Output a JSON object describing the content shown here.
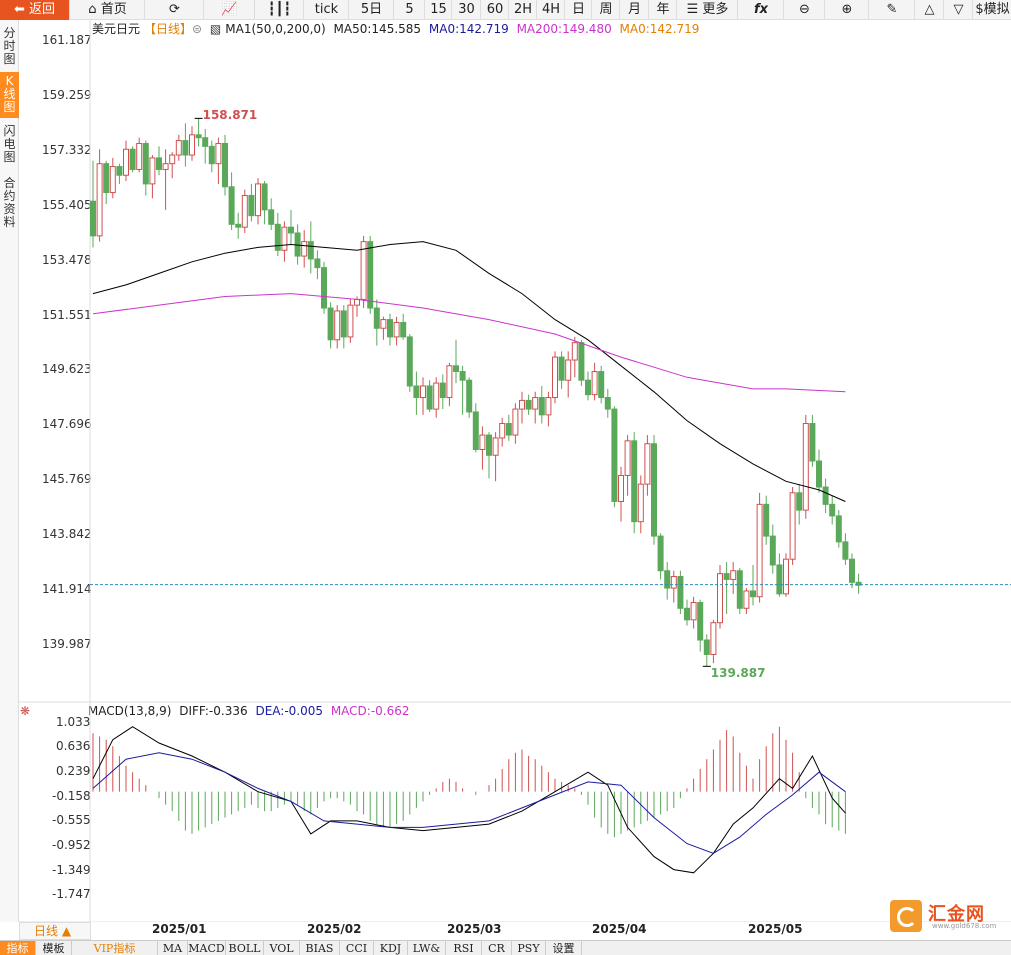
{
  "toolbar": {
    "back": "返回",
    "home": "首页",
    "tick": "tick",
    "day5": "5日",
    "m5": "5",
    "m15": "15",
    "m30": "30",
    "m60": "60",
    "h2": "2H",
    "h4": "4H",
    "day": "日",
    "week": "周",
    "month": "月",
    "year": "年",
    "more": "更多",
    "sim": "模拟"
  },
  "left_tabs": [
    "分时图",
    "K线图",
    "闪电图",
    "合约资料"
  ],
  "legend": {
    "symbol": "美元日元",
    "period": "【日线】",
    "ma1": "MA1(50,0,200,0)",
    "ma50": "MA50:145.585",
    "ma0a": "MA0:142.719",
    "ma200": "MA200:149.480",
    "ma0b": "MA0:142.719"
  },
  "macd_legend": {
    "name": "MACD(13,8,9)",
    "diff": "DIFF:-0.336",
    "dea": "DEA:-0.005",
    "macd": "MACD:-0.662"
  },
  "price_axis": [
    "161.187",
    "159.259",
    "157.332",
    "155.405",
    "153.478",
    "151.551",
    "149.623",
    "147.696",
    "145.769",
    "143.842",
    "141.914",
    "139.987"
  ],
  "macd_axis": [
    "1.033",
    "0.636",
    "0.239",
    "-0.158",
    "-0.555",
    "-0.952",
    "-1.349",
    "-1.747"
  ],
  "x_labels": [
    "2025/01",
    "2025/02",
    "2025/03",
    "2025/04",
    "2025/05"
  ],
  "high_label": "158.871",
  "low_label": "139.887",
  "period_tag": "日线 ▲",
  "bottom_tabs": [
    "指标",
    "模板",
    "VIP指标",
    "MA",
    "MACD",
    "BOLL",
    "VOL",
    "BIAS",
    "CCI",
    "KDJ",
    "LW&",
    "RSI",
    "CR",
    "PSY",
    "设置"
  ],
  "logo": {
    "name": "汇金网",
    "url": "www.gold678.com"
  },
  "colors": {
    "up": "#d05050",
    "down": "#5aa85a",
    "ma50": "#000000",
    "ma200": "#cc33cc",
    "accent": "#ff8a1e",
    "current_line": "#2b8fb0"
  },
  "chart_data": {
    "type": "candlestick",
    "ylim": [
      139.0,
      162.0
    ],
    "current_price": 142.72,
    "candles": [
      [
        156.0,
        157.4,
        154.4,
        154.8
      ],
      [
        154.8,
        157.8,
        154.6,
        157.3
      ],
      [
        157.3,
        157.4,
        155.9,
        156.3
      ],
      [
        156.3,
        157.5,
        156.1,
        157.2
      ],
      [
        157.2,
        157.3,
        156.6,
        156.9
      ],
      [
        156.9,
        158.1,
        156.7,
        157.8
      ],
      [
        157.8,
        157.9,
        157.0,
        157.1
      ],
      [
        157.1,
        158.2,
        157.0,
        158.0
      ],
      [
        158.0,
        158.1,
        156.2,
        156.6
      ],
      [
        156.6,
        157.6,
        156.1,
        157.5
      ],
      [
        157.5,
        157.9,
        156.9,
        157.1
      ],
      [
        157.1,
        157.8,
        155.7,
        157.3
      ],
      [
        157.3,
        157.7,
        156.8,
        157.6
      ],
      [
        157.6,
        158.3,
        157.4,
        158.1
      ],
      [
        158.1,
        158.7,
        157.2,
        157.6
      ],
      [
        157.6,
        158.6,
        157.4,
        158.3
      ],
      [
        158.3,
        158.87,
        157.9,
        158.2
      ],
      [
        158.2,
        158.5,
        157.3,
        157.9
      ],
      [
        157.9,
        158.1,
        157.0,
        157.3
      ],
      [
        157.3,
        158.2,
        156.6,
        158.0
      ],
      [
        158.0,
        158.3,
        156.2,
        156.5
      ],
      [
        156.5,
        157.0,
        155.0,
        155.2
      ],
      [
        155.2,
        155.6,
        154.7,
        155.1
      ],
      [
        155.1,
        156.4,
        154.9,
        156.2
      ],
      [
        156.2,
        156.6,
        155.3,
        155.5
      ],
      [
        155.5,
        156.8,
        155.2,
        156.6
      ],
      [
        156.6,
        156.7,
        155.2,
        155.7
      ],
      [
        155.7,
        156.1,
        155.0,
        155.2
      ],
      [
        155.2,
        155.6,
        154.1,
        154.3
      ],
      [
        154.3,
        155.3,
        153.9,
        155.1
      ],
      [
        155.1,
        155.7,
        154.5,
        154.9
      ],
      [
        154.9,
        155.2,
        153.8,
        154.1
      ],
      [
        154.1,
        155.0,
        153.7,
        154.6
      ],
      [
        154.6,
        155.3,
        153.5,
        154.0
      ],
      [
        154.0,
        154.3,
        153.3,
        153.7
      ],
      [
        153.7,
        153.9,
        152.1,
        152.3
      ],
      [
        152.3,
        152.5,
        150.9,
        151.2
      ],
      [
        151.2,
        152.4,
        150.9,
        152.2
      ],
      [
        152.2,
        152.4,
        150.9,
        151.3
      ],
      [
        151.3,
        152.6,
        151.1,
        152.4
      ],
      [
        152.4,
        152.7,
        152.0,
        152.6
      ],
      [
        152.6,
        154.8,
        152.3,
        154.6
      ],
      [
        154.6,
        154.8,
        152.1,
        152.3
      ],
      [
        152.3,
        152.6,
        151.0,
        151.6
      ],
      [
        151.6,
        152.0,
        151.2,
        151.9
      ],
      [
        151.9,
        152.1,
        151.0,
        151.3
      ],
      [
        151.3,
        152.0,
        151.0,
        151.8
      ],
      [
        151.8,
        152.1,
        151.2,
        151.3
      ],
      [
        151.3,
        151.4,
        149.4,
        149.6
      ],
      [
        149.6,
        150.1,
        148.6,
        149.2
      ],
      [
        149.2,
        149.9,
        148.6,
        149.6
      ],
      [
        149.6,
        149.8,
        148.7,
        148.8
      ],
      [
        148.8,
        149.9,
        148.5,
        149.7
      ],
      [
        149.7,
        150.0,
        148.8,
        149.2
      ],
      [
        149.2,
        150.4,
        148.9,
        150.3
      ],
      [
        150.3,
        151.2,
        149.7,
        150.1
      ],
      [
        150.1,
        150.3,
        148.6,
        149.8
      ],
      [
        149.8,
        149.9,
        148.5,
        148.7
      ],
      [
        148.7,
        149.0,
        147.3,
        147.4
      ],
      [
        147.4,
        148.2,
        146.7,
        147.9
      ],
      [
        147.9,
        148.0,
        146.4,
        147.2
      ],
      [
        147.2,
        148.0,
        146.3,
        147.8
      ],
      [
        147.8,
        148.5,
        147.5,
        148.3
      ],
      [
        148.3,
        148.6,
        147.7,
        147.9
      ],
      [
        147.9,
        149.0,
        147.6,
        148.8
      ],
      [
        148.8,
        149.4,
        148.3,
        149.1
      ],
      [
        149.1,
        149.3,
        148.6,
        148.8
      ],
      [
        148.8,
        149.4,
        148.3,
        149.2
      ],
      [
        149.2,
        149.6,
        148.3,
        148.6
      ],
      [
        148.6,
        149.4,
        148.2,
        149.2
      ],
      [
        149.2,
        150.8,
        149.0,
        150.6
      ],
      [
        150.6,
        150.8,
        149.5,
        149.8
      ],
      [
        149.8,
        150.8,
        149.2,
        150.5
      ],
      [
        150.5,
        151.3,
        149.9,
        151.1
      ],
      [
        151.1,
        151.2,
        149.6,
        149.8
      ],
      [
        149.8,
        150.1,
        149.1,
        149.3
      ],
      [
        149.3,
        150.4,
        149.1,
        150.1
      ],
      [
        150.1,
        150.3,
        149.0,
        149.2
      ],
      [
        149.2,
        149.5,
        148.5,
        148.8
      ],
      [
        148.8,
        148.9,
        145.4,
        145.6
      ],
      [
        145.6,
        146.8,
        144.9,
        146.5
      ],
      [
        146.5,
        147.9,
        145.8,
        147.7
      ],
      [
        147.7,
        148.0,
        144.5,
        144.9
      ],
      [
        144.9,
        146.5,
        144.5,
        146.2
      ],
      [
        146.2,
        147.9,
        145.8,
        147.6
      ],
      [
        147.6,
        147.9,
        144.1,
        144.4
      ],
      [
        144.4,
        144.5,
        142.9,
        143.2
      ],
      [
        143.2,
        143.5,
        142.2,
        142.6
      ],
      [
        142.6,
        143.2,
        142.1,
        143.0
      ],
      [
        143.0,
        143.2,
        141.7,
        141.9
      ],
      [
        141.9,
        142.2,
        141.3,
        141.5
      ],
      [
        141.5,
        142.3,
        141.2,
        142.1
      ],
      [
        142.1,
        142.2,
        140.4,
        140.8
      ],
      [
        140.8,
        141.0,
        139.89,
        140.3
      ],
      [
        140.3,
        141.5,
        140.0,
        141.4
      ],
      [
        141.4,
        143.4,
        141.2,
        143.1
      ],
      [
        143.1,
        143.5,
        141.7,
        142.9
      ],
      [
        142.9,
        143.5,
        142.4,
        143.2
      ],
      [
        143.2,
        143.3,
        141.7,
        141.9
      ],
      [
        141.9,
        142.6,
        141.7,
        142.5
      ],
      [
        142.5,
        143.4,
        142.0,
        142.3
      ],
      [
        142.3,
        145.9,
        142.1,
        145.5
      ],
      [
        145.5,
        145.8,
        144.1,
        144.4
      ],
      [
        144.4,
        144.8,
        143.1,
        143.4
      ],
      [
        143.4,
        143.8,
        142.3,
        142.4
      ],
      [
        142.4,
        143.8,
        142.3,
        143.6
      ],
      [
        143.6,
        146.1,
        143.4,
        145.9
      ],
      [
        145.9,
        146.2,
        144.8,
        145.3
      ],
      [
        145.3,
        148.6,
        145.0,
        148.3
      ],
      [
        148.3,
        148.6,
        146.8,
        147.0
      ],
      [
        147.0,
        147.4,
        145.9,
        146.1
      ],
      [
        146.1,
        146.4,
        145.2,
        145.5
      ],
      [
        145.5,
        145.8,
        144.8,
        145.1
      ],
      [
        145.1,
        145.3,
        144.0,
        144.2
      ],
      [
        144.2,
        144.5,
        143.4,
        143.6
      ],
      [
        143.6,
        143.8,
        142.6,
        142.8
      ],
      [
        142.8,
        143.1,
        142.4,
        142.7
      ]
    ],
    "ma50": [
      [
        0,
        152.8
      ],
      [
        5,
        153.1
      ],
      [
        10,
        153.5
      ],
      [
        15,
        153.9
      ],
      [
        20,
        154.2
      ],
      [
        25,
        154.4
      ],
      [
        30,
        154.5
      ],
      [
        35,
        154.4
      ],
      [
        40,
        154.3
      ],
      [
        45,
        154.5
      ],
      [
        50,
        154.6
      ],
      [
        55,
        154.3
      ],
      [
        60,
        153.5
      ],
      [
        65,
        152.8
      ],
      [
        70,
        151.9
      ],
      [
        75,
        151.2
      ],
      [
        80,
        150.3
      ],
      [
        85,
        149.4
      ],
      [
        90,
        148.4
      ],
      [
        95,
        147.6
      ],
      [
        100,
        146.9
      ],
      [
        105,
        146.3
      ],
      [
        110,
        146.0
      ],
      [
        114,
        145.6
      ]
    ],
    "ma200": [
      [
        0,
        152.1
      ],
      [
        10,
        152.4
      ],
      [
        20,
        152.7
      ],
      [
        30,
        152.8
      ],
      [
        40,
        152.6
      ],
      [
        50,
        152.3
      ],
      [
        60,
        151.9
      ],
      [
        70,
        151.4
      ],
      [
        80,
        150.6
      ],
      [
        90,
        149.9
      ],
      [
        100,
        149.5
      ],
      [
        105,
        149.5
      ],
      [
        114,
        149.4
      ]
    ],
    "macd_series": {
      "ylim": [
        -1.9,
        1.15
      ],
      "diff": [
        [
          0,
          0.2
        ],
        [
          3,
          0.8
        ],
        [
          6,
          1.0
        ],
        [
          10,
          0.75
        ],
        [
          15,
          0.55
        ],
        [
          20,
          0.3
        ],
        [
          25,
          0.0
        ],
        [
          30,
          -0.15
        ],
        [
          33,
          -0.65
        ],
        [
          36,
          -0.45
        ],
        [
          40,
          -0.45
        ],
        [
          45,
          -0.55
        ],
        [
          50,
          -0.6
        ],
        [
          55,
          -0.55
        ],
        [
          60,
          -0.5
        ],
        [
          65,
          -0.3
        ],
        [
          70,
          0.0
        ],
        [
          75,
          0.3
        ],
        [
          78,
          0.1
        ],
        [
          81,
          -0.55
        ],
        [
          85,
          -1.0
        ],
        [
          88,
          -1.2
        ],
        [
          91,
          -1.25
        ],
        [
          94,
          -0.95
        ],
        [
          97,
          -0.5
        ],
        [
          100,
          -0.25
        ],
        [
          104,
          0.2
        ],
        [
          106,
          0.05
        ],
        [
          109,
          0.55
        ],
        [
          112,
          -0.1
        ],
        [
          114,
          -0.33
        ]
      ],
      "dea": [
        [
          0,
          0.05
        ],
        [
          5,
          0.5
        ],
        [
          10,
          0.6
        ],
        [
          15,
          0.5
        ],
        [
          20,
          0.3
        ],
        [
          25,
          0.05
        ],
        [
          30,
          -0.15
        ],
        [
          35,
          -0.45
        ],
        [
          40,
          -0.5
        ],
        [
          45,
          -0.55
        ],
        [
          50,
          -0.55
        ],
        [
          55,
          -0.5
        ],
        [
          60,
          -0.45
        ],
        [
          65,
          -0.25
        ],
        [
          70,
          -0.05
        ],
        [
          75,
          0.15
        ],
        [
          80,
          0.1
        ],
        [
          85,
          -0.4
        ],
        [
          90,
          -0.8
        ],
        [
          94,
          -0.95
        ],
        [
          98,
          -0.7
        ],
        [
          102,
          -0.35
        ],
        [
          106,
          -0.05
        ],
        [
          110,
          0.3
        ],
        [
          114,
          -0.0
        ]
      ],
      "hist": [
        0.9,
        0.85,
        0.8,
        0.7,
        0.55,
        0.4,
        0.3,
        0.2,
        0.1,
        0.0,
        -0.1,
        -0.2,
        -0.3,
        -0.45,
        -0.6,
        -0.65,
        -0.6,
        -0.55,
        -0.5,
        -0.45,
        -0.4,
        -0.35,
        -0.3,
        -0.25,
        -0.2,
        -0.25,
        -0.3,
        -0.3,
        -0.25,
        -0.2,
        -0.15,
        -0.2,
        -0.3,
        -0.35,
        -0.25,
        -0.15,
        -0.1,
        -0.1,
        -0.15,
        -0.2,
        -0.3,
        -0.35,
        -0.45,
        -0.5,
        -0.55,
        -0.55,
        -0.5,
        -0.45,
        -0.35,
        -0.25,
        -0.15,
        -0.05,
        0.05,
        0.15,
        0.2,
        0.15,
        0.05,
        0.0,
        -0.05,
        0.0,
        0.1,
        0.2,
        0.35,
        0.5,
        0.6,
        0.65,
        0.55,
        0.5,
        0.4,
        0.3,
        0.2,
        0.15,
        0.1,
        0.05,
        -0.05,
        -0.2,
        -0.4,
        -0.55,
        -0.65,
        -0.7,
        -0.65,
        -0.6,
        -0.55,
        -0.5,
        -0.45,
        -0.4,
        -0.35,
        -0.3,
        -0.25,
        -0.1,
        0.05,
        0.2,
        0.35,
        0.5,
        0.65,
        0.8,
        0.95,
        0.85,
        0.6,
        0.4,
        0.2,
        0.5,
        0.7,
        0.9,
        1.0,
        0.8,
        0.6,
        0.3,
        -0.1,
        -0.25,
        -0.35,
        -0.5,
        -0.55,
        -0.6,
        -0.65
      ]
    }
  }
}
